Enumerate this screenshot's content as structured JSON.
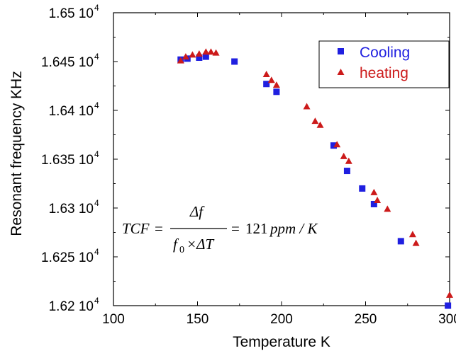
{
  "chart_data": {
    "type": "scatter",
    "xlabel": "Temperature K",
    "ylabel": "Resonant frequency KHz",
    "xlim": [
      100,
      300
    ],
    "ylim": [
      16200,
      16500
    ],
    "x_ticks": [
      100,
      150,
      200,
      250,
      300
    ],
    "y_ticks": [
      {
        "value": 16200,
        "mantissa": "1.62 10",
        "exp": "4"
      },
      {
        "value": 16250,
        "mantissa": "1.625 10",
        "exp": "4"
      },
      {
        "value": 16300,
        "mantissa": "1.63 10",
        "exp": "4"
      },
      {
        "value": 16350,
        "mantissa": "1.635 10",
        "exp": "4"
      },
      {
        "value": 16400,
        "mantissa": "1.64 10",
        "exp": "4"
      },
      {
        "value": 16450,
        "mantissa": "1.645 10",
        "exp": "4"
      },
      {
        "value": 16500,
        "mantissa": "1.65 10",
        "exp": "4"
      }
    ],
    "grid": false,
    "legend_position": "top-right",
    "series": [
      {
        "name": "Cooling",
        "marker": "square",
        "color": "#1f1fe0",
        "points": [
          {
            "x": 140,
            "y": 16452
          },
          {
            "x": 144,
            "y": 16453
          },
          {
            "x": 151,
            "y": 16454
          },
          {
            "x": 155,
            "y": 16455
          },
          {
            "x": 172,
            "y": 16450
          },
          {
            "x": 191,
            "y": 16427
          },
          {
            "x": 197,
            "y": 16419
          },
          {
            "x": 231,
            "y": 16364
          },
          {
            "x": 239,
            "y": 16338
          },
          {
            "x": 248,
            "y": 16320
          },
          {
            "x": 255,
            "y": 16304
          },
          {
            "x": 271,
            "y": 16266
          },
          {
            "x": 299,
            "y": 16200
          }
        ]
      },
      {
        "name": "heating",
        "marker": "triangle",
        "color": "#cc1a1a",
        "points": [
          {
            "x": 140,
            "y": 16451
          },
          {
            "x": 143,
            "y": 16455
          },
          {
            "x": 147,
            "y": 16457
          },
          {
            "x": 151,
            "y": 16458
          },
          {
            "x": 155,
            "y": 16460
          },
          {
            "x": 158,
            "y": 16460
          },
          {
            "x": 161,
            "y": 16459
          },
          {
            "x": 191,
            "y": 16437
          },
          {
            "x": 194,
            "y": 16431
          },
          {
            "x": 197,
            "y": 16426
          },
          {
            "x": 215,
            "y": 16404
          },
          {
            "x": 220,
            "y": 16389
          },
          {
            "x": 223,
            "y": 16385
          },
          {
            "x": 233,
            "y": 16365
          },
          {
            "x": 237,
            "y": 16353
          },
          {
            "x": 240,
            "y": 16348
          },
          {
            "x": 255,
            "y": 16316
          },
          {
            "x": 257,
            "y": 16308
          },
          {
            "x": 263,
            "y": 16299
          },
          {
            "x": 278,
            "y": 16273
          },
          {
            "x": 280,
            "y": 16264
          },
          {
            "x": 300,
            "y": 16211
          }
        ]
      }
    ],
    "equation": {
      "lhs": "TCF",
      "eq1": "=",
      "numerator": "Δf",
      "den_f": "f",
      "den_sub": "0",
      "den_rest": "×ΔT",
      "eq2": "=",
      "value": "121",
      "unit": "ppm / K"
    }
  }
}
